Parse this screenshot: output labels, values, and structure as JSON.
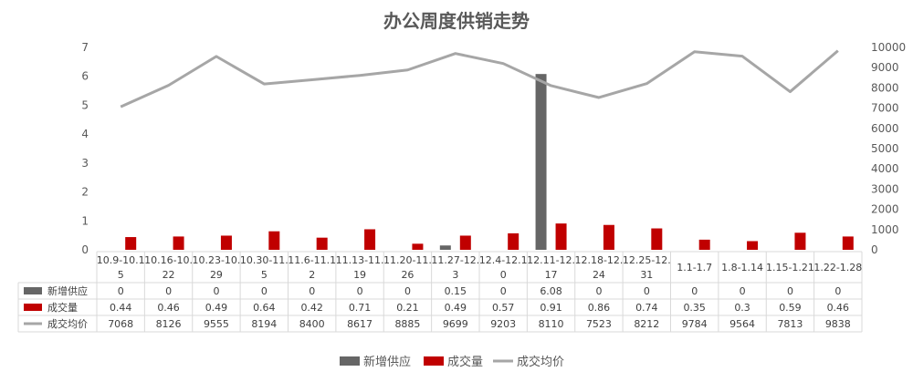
{
  "chart_data": {
    "type": "bar+line",
    "title": "办公周度供销走势",
    "categories": [
      [
        "10.9-10.1",
        "5"
      ],
      [
        "10.16-10.",
        "22"
      ],
      [
        "10.23-10.",
        "29"
      ],
      [
        "10.30-11.",
        "5"
      ],
      [
        "11.6-11.1",
        "2"
      ],
      [
        "11.13-11.",
        "19"
      ],
      [
        "11.20-11.",
        "26"
      ],
      [
        "11.27-12.",
        "3"
      ],
      [
        "12.4-12.1",
        "0"
      ],
      [
        "12.11-12.",
        "17"
      ],
      [
        "12.18-12.",
        "24"
      ],
      [
        "12.25-12.",
        "31"
      ],
      [
        "1.1-1.7"
      ],
      [
        "1.8-1.14"
      ],
      [
        "1.15-1.21"
      ],
      [
        "1.22-1.28"
      ]
    ],
    "series": [
      {
        "name": "新增供应",
        "type": "bar",
        "axis": "left",
        "color": "#666666",
        "values": [
          0,
          0,
          0,
          0,
          0,
          0,
          0,
          0.15,
          0,
          6.08,
          0,
          0,
          0,
          0,
          0,
          0
        ]
      },
      {
        "name": "成交量",
        "type": "bar",
        "axis": "left",
        "color": "#c00000",
        "values": [
          0.44,
          0.46,
          0.49,
          0.64,
          0.42,
          0.71,
          0.21,
          0.49,
          0.57,
          0.91,
          0.86,
          0.74,
          0.35,
          0.3,
          0.59,
          0.46
        ]
      },
      {
        "name": "成交均价",
        "type": "line",
        "axis": "right",
        "color": "#a6a6a6",
        "values": [
          7068,
          8126,
          9555,
          8194,
          8400,
          8617,
          8885,
          9699,
          9203,
          8110,
          7523,
          8212,
          9784,
          9564,
          7813,
          9838
        ]
      }
    ],
    "left_axis": {
      "ylim": [
        0,
        7
      ],
      "ticks": [
        "0",
        "1",
        "2",
        "3",
        "4",
        "5",
        "6",
        "7"
      ]
    },
    "right_axis": {
      "ylim": [
        0,
        10000
      ],
      "ticks": [
        "0",
        "1000",
        "2000",
        "3000",
        "4000",
        "5000",
        "6000",
        "7000",
        "8000",
        "9000",
        "10000"
      ]
    },
    "data_table": true,
    "gridlines": false,
    "legend_position": "bottom"
  }
}
